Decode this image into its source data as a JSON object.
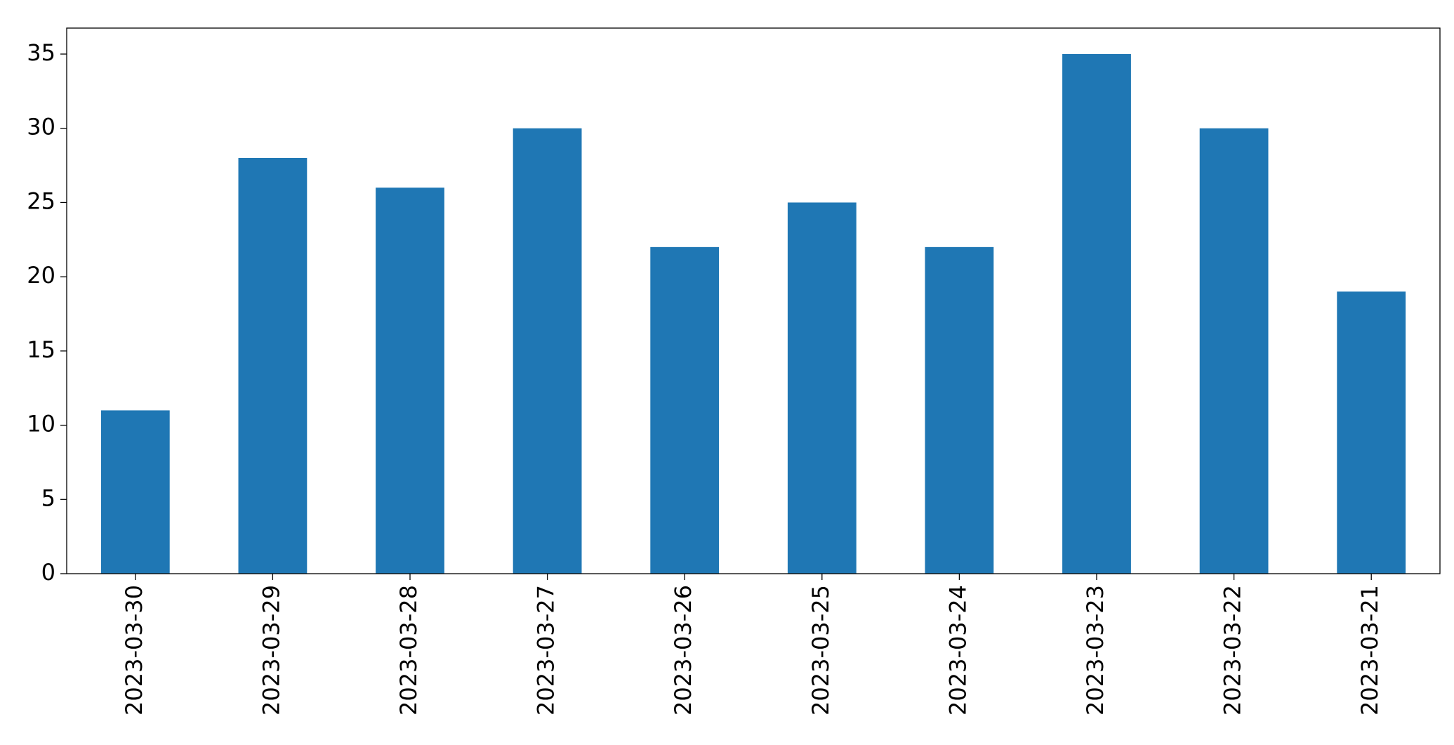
{
  "chart_data": {
    "type": "bar",
    "categories": [
      "2023-03-30",
      "2023-03-29",
      "2023-03-28",
      "2023-03-27",
      "2023-03-26",
      "2023-03-25",
      "2023-03-24",
      "2023-03-23",
      "2023-03-22",
      "2023-03-21"
    ],
    "values": [
      11,
      28,
      26,
      30,
      22,
      25,
      22,
      35,
      30,
      19
    ],
    "color": "#1f77b4",
    "ylim": [
      0,
      36.75
    ],
    "yticks": [
      0,
      5,
      10,
      15,
      20,
      25,
      30,
      35
    ],
    "grid": false
  }
}
